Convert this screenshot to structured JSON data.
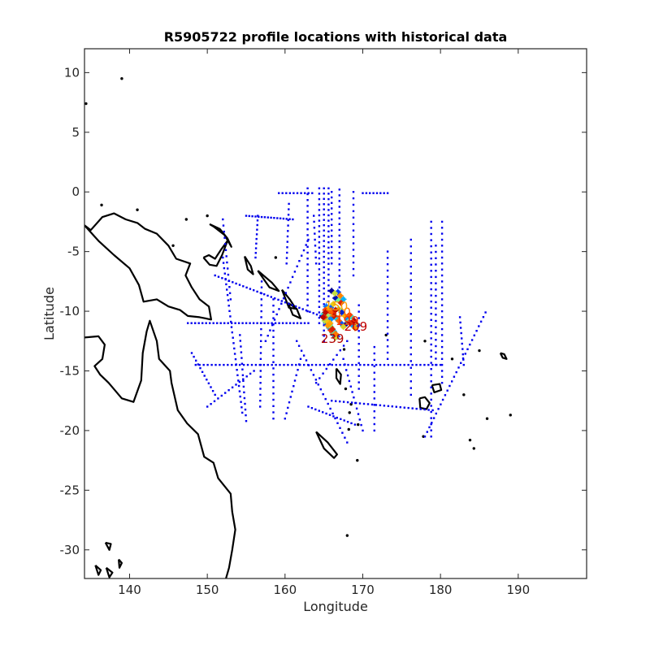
{
  "chart_data": {
    "type": "scatter",
    "title": "R5905722 profile locations with historical data",
    "xlabel": "Longitude",
    "ylabel": "Latitude",
    "xlim": [
      134.2,
      198.8
    ],
    "ylim": [
      -32.4,
      12.0
    ],
    "xticks": [
      140,
      150,
      160,
      170,
      180,
      190
    ],
    "yticks": [
      10,
      5,
      0,
      -5,
      -10,
      -15,
      -20,
      -25,
      -30
    ],
    "grid": false,
    "legend": "none",
    "colors": {
      "historical": "#0000ee",
      "coast": "#000000",
      "frame": "#262626",
      "profile_ramp": [
        "#00008f",
        "#0040ff",
        "#00c0ff",
        "#80ff80",
        "#ffc000",
        "#ff4000",
        "#b00000"
      ]
    },
    "profile_labels": [
      {
        "text": "239",
        "x": 166.1,
        "y": -12.3,
        "color": "#b00000"
      },
      {
        "text": "110",
        "x": 167.0,
        "y": -10.1,
        "color": "#ff6a00"
      },
      {
        "text": "199",
        "x": 168.0,
        "y": -10.8,
        "color": "#ff3000"
      },
      {
        "text": "209",
        "x": 169.1,
        "y": -11.3,
        "color": "#c00000"
      },
      {
        "text": "150",
        "x": 166.6,
        "y": -9.6,
        "color": "#ffa000"
      }
    ],
    "profiles_x": [
      166.0,
      166.4,
      166.8,
      167.1,
      167.5,
      167.2,
      166.9,
      166.5,
      166.2,
      165.9,
      165.7,
      166.1,
      166.5,
      166.9,
      167.3,
      167.7,
      168.0,
      168.3,
      168.6,
      168.9,
      169.1,
      169.3,
      169.0,
      168.7,
      168.4,
      168.1,
      167.8,
      167.5,
      167.2,
      166.9,
      166.6,
      166.3,
      166.0,
      165.7,
      165.5,
      165.3,
      165.2,
      165.0,
      164.9,
      165.1,
      165.3,
      165.5,
      165.7,
      165.9,
      166.1,
      166.3,
      166.5,
      166.7,
      166.5,
      166.3,
      166.1,
      165.9,
      165.7,
      165.5,
      165.3,
      165.1,
      165.0,
      165.2,
      165.4,
      165.6,
      165.8,
      166.0,
      166.2,
      166.4
    ],
    "profiles_y": [
      -8.3,
      -8.5,
      -8.4,
      -8.7,
      -9.0,
      -9.3,
      -9.1,
      -8.9,
      -9.4,
      -9.7,
      -10.0,
      -10.2,
      -9.9,
      -9.8,
      -10.1,
      -10.4,
      -10.6,
      -10.3,
      -10.5,
      -10.8,
      -11.0,
      -11.2,
      -11.4,
      -11.2,
      -11.0,
      -10.9,
      -11.1,
      -11.3,
      -11.0,
      -10.8,
      -10.6,
      -10.4,
      -10.2,
      -10.0,
      -9.8,
      -9.6,
      -9.9,
      -10.2,
      -10.5,
      -10.8,
      -11.0,
      -11.2,
      -11.4,
      -11.6,
      -11.8,
      -12.0,
      -12.2,
      -12.1,
      -11.9,
      -11.7,
      -11.5,
      -11.3,
      -11.1,
      -10.9,
      -10.7,
      -10.5,
      -10.3,
      -10.1,
      -10.4,
      -10.7,
      -11.0,
      -10.6,
      -10.2,
      -10.4
    ],
    "historical_tracks": [
      {
        "from": [
          165.0,
          0.3
        ],
        "to": [
          165.0,
          -12.5
        ],
        "n": 30
      },
      {
        "from": [
          164.4,
          0.3
        ],
        "to": [
          164.4,
          -11.0
        ],
        "n": 26
      },
      {
        "from": [
          165.6,
          0.3
        ],
        "to": [
          165.6,
          -11.0
        ],
        "n": 26
      },
      {
        "from": [
          162.9,
          0.3
        ],
        "to": [
          162.9,
          -10.0
        ],
        "n": 22
      },
      {
        "from": [
          167.0,
          0.2
        ],
        "to": [
          167.0,
          -8.0
        ],
        "n": 18
      },
      {
        "from": [
          166.0,
          0.0
        ],
        "to": [
          166.0,
          -6.0
        ],
        "n": 14
      },
      {
        "from": [
          163.7,
          -2.0
        ],
        "to": [
          164.0,
          -6.0
        ],
        "n": 9
      },
      {
        "from": [
          168.8,
          0.0
        ],
        "to": [
          168.8,
          -7.0
        ],
        "n": 14
      },
      {
        "from": [
          173.2,
          -5.0
        ],
        "to": [
          173.2,
          -14.0
        ],
        "n": 18
      },
      {
        "from": [
          170.0,
          -0.1
        ],
        "to": [
          173.2,
          -0.1
        ],
        "n": 8
      },
      {
        "from": [
          159.2,
          -0.1
        ],
        "to": [
          163.5,
          -0.1
        ],
        "n": 10
      },
      {
        "from": [
          178.8,
          -2.5
        ],
        "to": [
          178.8,
          -20.5
        ],
        "n": 36
      },
      {
        "from": [
          180.2,
          -2.5
        ],
        "to": [
          180.2,
          -16.0
        ],
        "n": 28
      },
      {
        "from": [
          179.4,
          -4.5
        ],
        "to": [
          179.4,
          -14.5
        ],
        "n": 20
      },
      {
        "from": [
          176.2,
          -4.0
        ],
        "to": [
          176.2,
          -17.0
        ],
        "n": 24
      },
      {
        "from": [
          171.5,
          -13.0
        ],
        "to": [
          171.5,
          -20.0
        ],
        "n": 14
      },
      {
        "from": [
          148.5,
          -14.5
        ],
        "to": [
          180.0,
          -14.5
        ],
        "n": 62
      },
      {
        "from": [
          166.0,
          -17.5
        ],
        "to": [
          179.0,
          -18.3
        ],
        "n": 26
      },
      {
        "from": [
          185.8,
          -10.1
        ],
        "to": [
          178.0,
          -20.5
        ],
        "n": 28
      },
      {
        "from": [
          182.5,
          -10.5
        ],
        "to": [
          183.0,
          -14.5
        ],
        "n": 10
      },
      {
        "from": [
          155.0,
          -2.0
        ],
        "to": [
          161.0,
          -2.3
        ],
        "n": 16
      },
      {
        "from": [
          156.5,
          -2.0
        ],
        "to": [
          156.2,
          -5.5
        ],
        "n": 10
      },
      {
        "from": [
          160.5,
          -1.0
        ],
        "to": [
          160.2,
          -6.0
        ],
        "n": 12
      },
      {
        "from": [
          152.0,
          -5.5
        ],
        "to": [
          154.5,
          -18.5
        ],
        "n": 30
      },
      {
        "from": [
          151.0,
          -7.0
        ],
        "to": [
          165.0,
          -10.5
        ],
        "n": 32
      },
      {
        "from": [
          147.5,
          -11.0
        ],
        "to": [
          163.0,
          -11.0
        ],
        "n": 34
      },
      {
        "from": [
          148.0,
          -13.5
        ],
        "to": [
          151.0,
          -17.0
        ],
        "n": 12
      },
      {
        "from": [
          154.2,
          -12.0
        ],
        "to": [
          155.0,
          -19.2
        ],
        "n": 16
      },
      {
        "from": [
          157.0,
          -7.5
        ],
        "to": [
          156.8,
          -18.0
        ],
        "n": 22
      },
      {
        "from": [
          163.0,
          -4.0
        ],
        "to": [
          157.5,
          -12.5
        ],
        "n": 20
      },
      {
        "from": [
          162.0,
          -14.0
        ],
        "to": [
          160.0,
          -19.0
        ],
        "n": 12
      },
      {
        "from": [
          150.0,
          -18.0
        ],
        "to": [
          156.0,
          -15.0
        ],
        "n": 14
      },
      {
        "from": [
          161.5,
          -12.5
        ],
        "to": [
          168.0,
          -21.0
        ],
        "n": 22
      },
      {
        "from": [
          167.5,
          -14.0
        ],
        "to": [
          170.0,
          -20.0
        ],
        "n": 14
      },
      {
        "from": [
          158.5,
          -9.0
        ],
        "to": [
          158.5,
          -19.0
        ],
        "n": 20
      },
      {
        "from": [
          163.0,
          -18.0
        ],
        "to": [
          169.0,
          -19.5
        ],
        "n": 14
      },
      {
        "from": [
          164.0,
          -16.0
        ],
        "to": [
          168.0,
          -12.5
        ],
        "n": 10
      },
      {
        "from": [
          152.0,
          -2.3
        ],
        "to": [
          153.0,
          -9.0
        ],
        "n": 14
      },
      {
        "from": [
          169.5,
          -9.5
        ],
        "to": [
          169.5,
          -16.5
        ],
        "n": 14
      }
    ],
    "coastline_outlines": [
      [
        [
          134.2,
          -2.8
        ],
        [
          136.0,
          -4.1
        ],
        [
          138.0,
          -5.3
        ],
        [
          140.0,
          -6.4
        ],
        [
          141.2,
          -7.8
        ],
        [
          141.8,
          -9.2
        ],
        [
          143.5,
          -9.0
        ],
        [
          145.0,
          -9.6
        ],
        [
          146.5,
          -9.9
        ],
        [
          147.5,
          -10.4
        ],
        [
          149.0,
          -10.5
        ],
        [
          150.5,
          -10.7
        ],
        [
          150.2,
          -9.6
        ],
        [
          149.0,
          -9.0
        ],
        [
          148.0,
          -8.0
        ],
        [
          147.2,
          -7.0
        ],
        [
          147.8,
          -6.0
        ],
        [
          146.0,
          -5.6
        ],
        [
          145.0,
          -4.5
        ],
        [
          143.5,
          -3.5
        ],
        [
          142.0,
          -3.1
        ],
        [
          141.0,
          -2.6
        ],
        [
          139.5,
          -2.3
        ],
        [
          138.0,
          -1.8
        ],
        [
          136.5,
          -2.1
        ],
        [
          135.0,
          -3.2
        ],
        [
          134.2,
          -2.8
        ]
      ],
      [
        [
          134.2,
          -12.2
        ],
        [
          136.0,
          -12.1
        ],
        [
          136.8,
          -12.8
        ],
        [
          136.5,
          -14.0
        ],
        [
          135.5,
          -14.6
        ],
        [
          136.2,
          -15.3
        ],
        [
          137.3,
          -16.0
        ],
        [
          139.0,
          -17.3
        ],
        [
          140.5,
          -17.6
        ],
        [
          141.5,
          -15.8
        ],
        [
          141.7,
          -13.5
        ],
        [
          142.2,
          -11.7
        ],
        [
          142.6,
          -10.8
        ],
        [
          143.5,
          -12.5
        ],
        [
          143.8,
          -14.0
        ],
        [
          145.2,
          -15.0
        ],
        [
          145.4,
          -16.0
        ],
        [
          146.2,
          -18.3
        ],
        [
          147.4,
          -19.4
        ],
        [
          148.8,
          -20.3
        ],
        [
          149.6,
          -22.2
        ],
        [
          150.8,
          -22.7
        ],
        [
          151.4,
          -24.0
        ],
        [
          153.0,
          -25.3
        ],
        [
          153.2,
          -26.8
        ],
        [
          153.6,
          -28.3
        ],
        [
          153.2,
          -30.0
        ],
        [
          152.8,
          -31.5
        ],
        [
          152.4,
          -32.4
        ]
      ],
      [
        [
          149.5,
          -5.5
        ],
        [
          150.2,
          -5.3
        ],
        [
          151.0,
          -5.6
        ],
        [
          151.8,
          -4.8
        ],
        [
          152.6,
          -4.1
        ],
        [
          151.9,
          -5.3
        ],
        [
          151.2,
          -6.2
        ],
        [
          150.3,
          -6.1
        ],
        [
          149.5,
          -5.5
        ]
      ],
      [
        [
          150.3,
          -2.7
        ],
        [
          151.6,
          -3.1
        ],
        [
          152.6,
          -3.9
        ],
        [
          153.1,
          -4.6
        ],
        [
          152.2,
          -3.6
        ],
        [
          150.8,
          -2.9
        ],
        [
          150.3,
          -2.7
        ]
      ],
      [
        [
          154.8,
          -5.4
        ],
        [
          155.6,
          -6.2
        ],
        [
          155.9,
          -6.9
        ],
        [
          155.2,
          -6.5
        ],
        [
          154.8,
          -5.4
        ]
      ],
      [
        [
          156.5,
          -6.6
        ],
        [
          158.3,
          -7.6
        ],
        [
          159.2,
          -8.3
        ],
        [
          158.0,
          -8.0
        ],
        [
          156.5,
          -6.6
        ]
      ],
      [
        [
          159.6,
          -8.2
        ],
        [
          160.6,
          -9.0
        ],
        [
          161.4,
          -9.8
        ],
        [
          160.5,
          -9.7
        ],
        [
          159.6,
          -8.2
        ]
      ],
      [
        [
          160.4,
          -9.3
        ],
        [
          161.5,
          -9.8
        ],
        [
          162.0,
          -10.6
        ],
        [
          161.0,
          -10.3
        ],
        [
          160.4,
          -9.3
        ]
      ],
      [
        [
          166.6,
          -14.8
        ],
        [
          167.2,
          -15.3
        ],
        [
          167.1,
          -16.1
        ],
        [
          166.6,
          -15.6
        ],
        [
          166.6,
          -14.8
        ]
      ],
      [
        [
          164.0,
          -20.1
        ],
        [
          165.5,
          -21.0
        ],
        [
          166.7,
          -22.0
        ],
        [
          166.3,
          -22.3
        ],
        [
          165.0,
          -21.5
        ],
        [
          164.0,
          -20.1
        ]
      ],
      [
        [
          177.3,
          -17.3
        ],
        [
          178.0,
          -17.2
        ],
        [
          178.6,
          -17.7
        ],
        [
          178.2,
          -18.2
        ],
        [
          177.4,
          -18.1
        ],
        [
          177.3,
          -17.3
        ]
      ],
      [
        [
          178.9,
          -16.2
        ],
        [
          179.9,
          -16.1
        ],
        [
          180.1,
          -16.6
        ],
        [
          179.2,
          -16.8
        ],
        [
          178.9,
          -16.2
        ]
      ],
      [
        [
          187.7,
          -13.5
        ],
        [
          188.2,
          -13.6
        ],
        [
          188.5,
          -14.0
        ],
        [
          188.0,
          -13.9
        ],
        [
          187.7,
          -13.5
        ]
      ],
      [
        [
          136.9,
          -29.4
        ],
        [
          137.6,
          -29.5
        ],
        [
          137.4,
          -30.0
        ],
        [
          136.9,
          -29.4
        ]
      ],
      [
        [
          135.6,
          -31.3
        ],
        [
          136.3,
          -31.7
        ],
        [
          136.0,
          -32.1
        ],
        [
          135.6,
          -31.3
        ]
      ],
      [
        [
          137.0,
          -31.5
        ],
        [
          137.8,
          -31.9
        ],
        [
          137.4,
          -32.3
        ],
        [
          137.0,
          -31.5
        ]
      ],
      [
        [
          138.6,
          -30.8
        ],
        [
          139.0,
          -31.1
        ],
        [
          138.7,
          -31.5
        ],
        [
          138.6,
          -30.8
        ]
      ]
    ],
    "coastline_islets": [
      [
        139.0,
        9.5
      ],
      [
        134.4,
        7.4
      ],
      [
        136.4,
        -1.1
      ],
      [
        141.0,
        -1.5
      ],
      [
        145.6,
        -4.5
      ],
      [
        150.0,
        -2.0
      ],
      [
        147.3,
        -2.3
      ],
      [
        158.8,
        -5.5
      ],
      [
        167.6,
        -13.2
      ],
      [
        167.8,
        -16.5
      ],
      [
        168.3,
        -18.5
      ],
      [
        169.4,
        -19.5
      ],
      [
        168.5,
        -17.8
      ],
      [
        169.3,
        -22.5
      ],
      [
        168.0,
        -28.8
      ],
      [
        173.0,
        -12.0
      ],
      [
        181.5,
        -14.0
      ],
      [
        183.0,
        -17.0
      ],
      [
        184.3,
        -21.5
      ],
      [
        186.0,
        -19.0
      ],
      [
        189.0,
        -18.7
      ],
      [
        185.0,
        -13.3
      ],
      [
        178.0,
        -12.5
      ],
      [
        177.8,
        -20.5
      ],
      [
        183.8,
        -20.8
      ],
      [
        168.2,
        -19.9
      ]
    ]
  }
}
